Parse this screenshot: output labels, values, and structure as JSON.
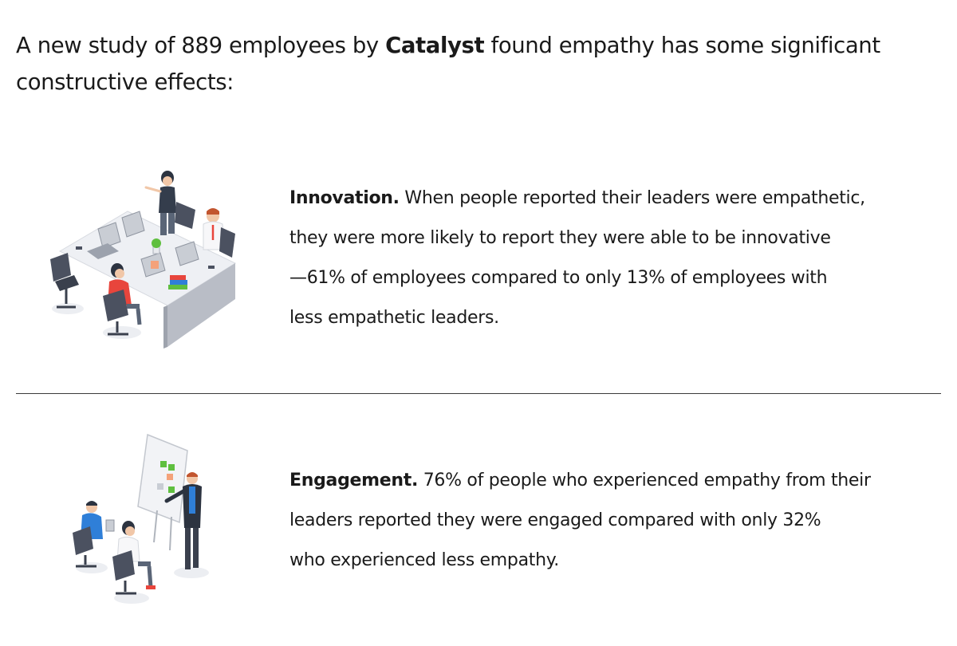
{
  "intro": {
    "prefix": "A new study of 889 employees by ",
    "org": "Catalyst",
    "suffix_line1": " found empathy has some significant",
    "line2": "constructive effects:"
  },
  "sections": [
    {
      "illustration_icon": "office-team-desk-illustration",
      "title": "Innovation.",
      "lines": [
        " When people reported their leaders were empathetic,",
        "they were more likely to report they were able to be innovative",
        "—61% of employees compared to only 13% of employees with",
        "less empathetic leaders."
      ]
    },
    {
      "illustration_icon": "whiteboard-meeting-illustration",
      "title": "Engagement.",
      "lines": [
        " 76% of people who experienced empathy from their",
        "leaders reported they were engaged compared with only 32%",
        "who experienced less empathy."
      ]
    }
  ],
  "colors": {
    "text": "#1a1a1a",
    "accent_red": "#e8453c",
    "accent_blue": "#2f7fd8",
    "plant_green": "#5fbf3f"
  }
}
